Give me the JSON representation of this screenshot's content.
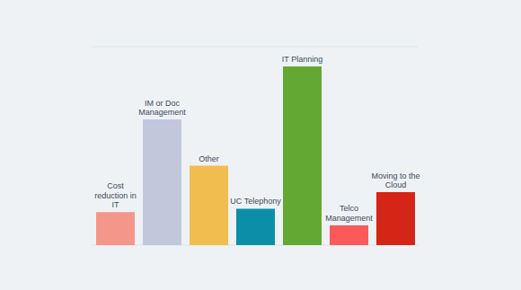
{
  "chart_data": {
    "type": "bar",
    "categories": [
      "Cost reduction in IT",
      "IM or Doc Management",
      "Other",
      "UC Telephony",
      "IT Planning",
      "Telco Management",
      "Moving to the Cloud"
    ],
    "values": [
      1.0,
      3.8,
      2.4,
      1.1,
      5.4,
      0.6,
      1.6
    ],
    "colors": [
      "#f4968a",
      "#c3c7dc",
      "#f2bd4f",
      "#0b8fa8",
      "#63a832",
      "#fc5a5a",
      "#d42516"
    ],
    "ylim": [
      0,
      6
    ],
    "yticks": [
      0,
      1,
      2,
      3,
      4,
      5,
      6
    ],
    "grid": true,
    "tick_labels": false
  }
}
